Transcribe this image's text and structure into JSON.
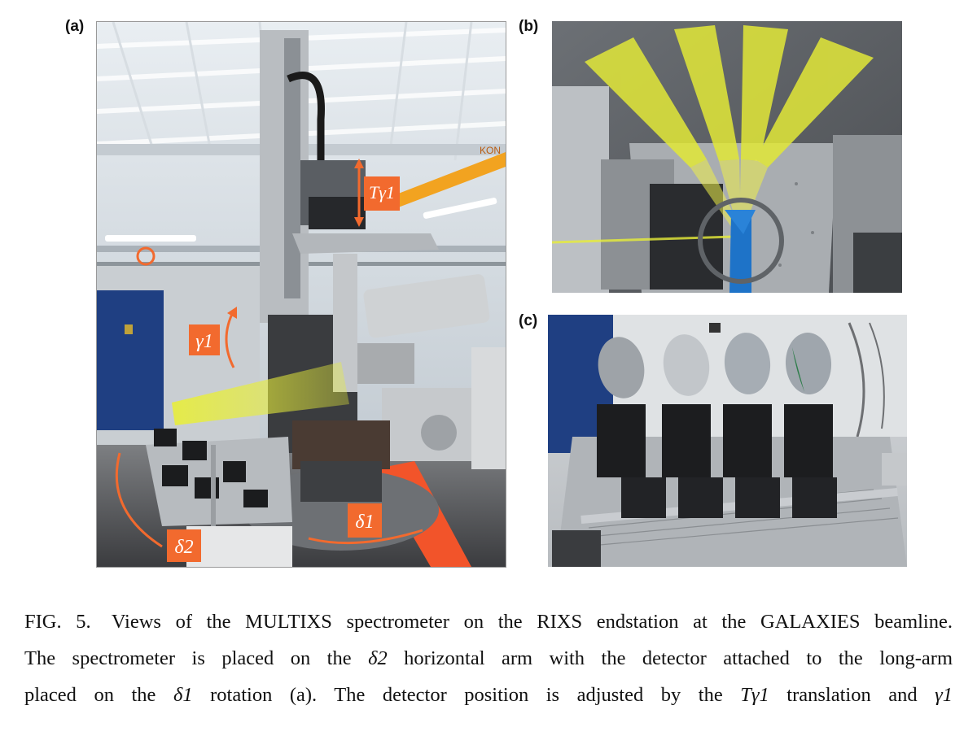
{
  "panels": {
    "a": {
      "label": "(a)"
    },
    "b": {
      "label": "(b)"
    },
    "c": {
      "label": "(c)"
    }
  },
  "annotations": {
    "t_gamma1": "Tγ1",
    "gamma1": "γ1",
    "delta1": "δ1",
    "delta2": "δ2",
    "sign_text": "KON"
  },
  "caption": {
    "fig_number": "FIG. 5.",
    "line1": "Views of the MULTIXS spectrometer on the RIXS endstation at the GALAXIES beamline.",
    "line2a": "The spectrometer is placed on the",
    "line2sym": "δ2",
    "line2b": "horizontal arm with the detector attached to the long-arm",
    "line3a": "placed on the",
    "line3sym1": "δ1",
    "line3b": "rotation (a).  The detector position is adjusted by the",
    "line3sym2": "Tγ1",
    "line3c": "translation and",
    "line3sym3": "γ1"
  },
  "colors": {
    "orange_annotation": "#f26a2e",
    "yellow_beam": "#e7ec3a",
    "blue_mount": "#1e73c8"
  }
}
